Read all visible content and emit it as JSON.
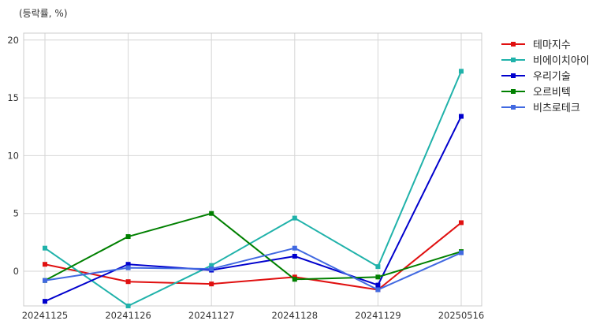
{
  "chart_data": {
    "type": "line",
    "unit_label": "(등락률, %)",
    "title": "",
    "xlabel": "",
    "ylabel": "",
    "categories": [
      "20241125",
      "20241126",
      "20241127",
      "20241128",
      "20241129",
      "20250516"
    ],
    "ylim": [
      -3,
      20.6
    ],
    "yticks": [
      0,
      5,
      10,
      15,
      20
    ],
    "grid": true,
    "legend": "outside-top-right",
    "series": [
      {
        "name": "테마지수",
        "color": "#e01010",
        "values": [
          0.6,
          -0.9,
          -1.1,
          -0.5,
          -1.6,
          4.2
        ]
      },
      {
        "name": "비에이치아이",
        "color": "#20b2aa",
        "values": [
          2.0,
          -3.0,
          0.5,
          4.6,
          0.4,
          17.3
        ]
      },
      {
        "name": "우리기술",
        "color": "#0000cd",
        "values": [
          -2.6,
          0.6,
          0.1,
          1.3,
          -1.2,
          13.4
        ]
      },
      {
        "name": "오르비텍",
        "color": "#008000",
        "values": [
          -0.8,
          3.0,
          5.0,
          -0.7,
          -0.5,
          1.7
        ]
      },
      {
        "name": "비츠로테크",
        "color": "#4169e1",
        "values": [
          -0.8,
          0.3,
          0.2,
          2.0,
          -1.6,
          1.6
        ]
      }
    ]
  }
}
